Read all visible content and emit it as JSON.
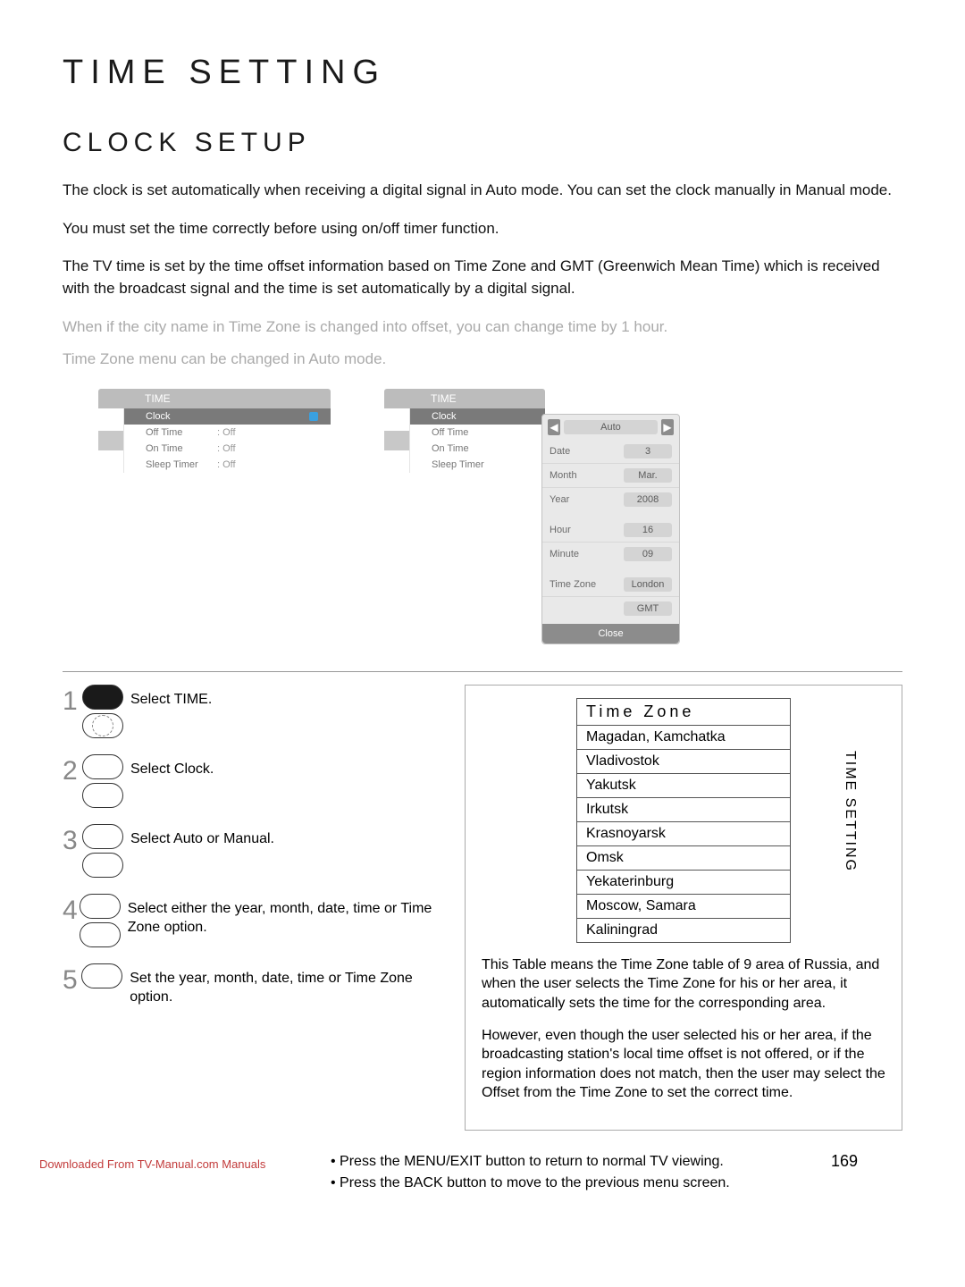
{
  "page": {
    "main_title": "TIME SETTING",
    "sub_title": "CLOCK SETUP",
    "para1": "The clock is set automatically when receiving a digital signal in Auto mode. You can set the clock manually in Manual mode.",
    "para2": "You must set the time correctly before using on/off timer function.",
    "para3": "The TV time is set by the time offset information based on Time Zone and GMT (Greenwich Mean Time) which is received with the broadcast signal and the time is set automatically by a digital signal.",
    "para4": "When if the city name in Time Zone is changed into offset, you can change time by 1 hour.",
    "para5": "Time Zone menu can be changed in Auto mode.",
    "side_label": "TIME SETTING",
    "page_number": "169",
    "download_link": "Downloaded From TV-Manual.com Manuals"
  },
  "menu1": {
    "title": "TIME",
    "rows": [
      {
        "label": "Clock",
        "value": "",
        "selected": true,
        "dot": true
      },
      {
        "label": "Off Time",
        "value": ": Off"
      },
      {
        "label": "On Time",
        "value": ": Off"
      },
      {
        "label": "Sleep Timer",
        "value": ": Off"
      }
    ]
  },
  "menu2": {
    "title": "TIME",
    "rows": [
      {
        "label": "Clock",
        "value": "",
        "selected": true
      },
      {
        "label": "Off Time",
        "value": ""
      },
      {
        "label": "On Time",
        "value": ""
      },
      {
        "label": "Sleep Timer",
        "value": ""
      }
    ],
    "popup": {
      "mode": "Auto",
      "fields": [
        {
          "label": "Date",
          "value": "3"
        },
        {
          "label": "Month",
          "value": "Mar."
        },
        {
          "label": "Year",
          "value": "2008"
        }
      ],
      "fields2": [
        {
          "label": "Hour",
          "value": "16"
        },
        {
          "label": "Minute",
          "value": "09"
        }
      ],
      "fields3": [
        {
          "label": "Time Zone",
          "value": "London"
        },
        {
          "label": "",
          "value": "GMT"
        }
      ],
      "close": "Close"
    }
  },
  "steps": [
    {
      "n": "1",
      "text": "Select TIME."
    },
    {
      "n": "2",
      "text": "Select Clock."
    },
    {
      "n": "3",
      "text": "Select Auto or Manual."
    },
    {
      "n": "4",
      "text": "Select either the year, month, date, time or Time Zone option."
    },
    {
      "n": "5",
      "text": "Set the year, month, date, time or Time Zone option."
    }
  ],
  "tz": {
    "header": "Time  Zone",
    "items": [
      "Magadan, Kamchatka",
      "Vladivostok",
      "Yakutsk",
      "Irkutsk",
      "Krasnoyarsk",
      "Omsk",
      "Yekaterinburg",
      "Moscow, Samara",
      "Kaliningrad"
    ],
    "note1": "This Table means the Time Zone table of 9 area of Russia, and when the user selects the Time Zone for his or her area, it automatically sets the time for the corresponding area.",
    "note2": "However, even though the user selected his or her area, if the broadcasting station's local time offset is not offered, or if the region information does not match, then the user may select the Offset from the Time Zone to set the correct time."
  },
  "footer": {
    "line1": "Press the MENU/EXIT button to return to normal TV viewing.",
    "line2": "Press the BACK button to move to the previous menu screen."
  },
  "colors": {
    "light_text": "#aaaaaa",
    "menu_header_bg": "#bcbcbc",
    "menu_row_sel": "#7a7a7a",
    "popup_bg": "#e9e9e9",
    "link_red": "#c23a3a"
  }
}
